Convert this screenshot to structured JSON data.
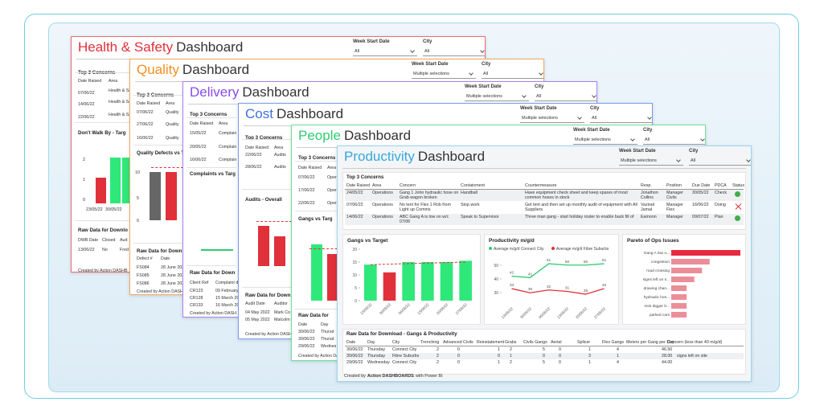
{
  "dashboards": [
    {
      "title_word": "Health & Safety",
      "title_rest": "Dashboard",
      "color": "#e0303a",
      "border": "#ec6b72",
      "filters": [
        {
          "label": "Week Start Date",
          "value": "All"
        },
        {
          "label": "City",
          "value": "All"
        }
      ],
      "texts": [
        "Top 3 Concerns",
        "Date Raised",
        "Area",
        "07/06/22",
        "Health & Safety",
        "14/06/22",
        "Health & Safety",
        "22/06/22",
        "Health & Safety",
        "Don't Walk By - Targ",
        "2",
        "1",
        "0",
        "23/05/22",
        "30/05/22",
        "Raw Data for Downlo",
        "DWB Date",
        "Closed",
        "Aud",
        "13/06/22",
        "No",
        "Fred",
        "Created by Action DASHB"
      ]
    },
    {
      "title_word": "Quality",
      "title_rest": "Dashboard",
      "color": "#f0901e",
      "border": "#f5a85a",
      "filters": [
        {
          "label": "Week Start Date",
          "value": "Multiple selections"
        },
        {
          "label": "City",
          "value": "All"
        }
      ],
      "texts": [
        "Top 3 Concerns",
        "Date Raised",
        "Area",
        "07/06/22",
        "Quality",
        "27/06/22",
        "Quality",
        "16/06/22",
        "Quality",
        "Quality Defects vs T",
        "10",
        "5",
        "0",
        "Raw Data for Down",
        "Defect #",
        "Date",
        "FS084",
        "28 June 2022",
        "FS085",
        "28 June 2022",
        "FS086",
        "28 June 2022",
        "Created by Action DASHB"
      ]
    },
    {
      "title_word": "Delivery",
      "title_rest": "Dashboard",
      "color": "#8a4bef",
      "border": "#a882f2",
      "filters": [
        {
          "label": "Week Start Date",
          "value": "Multiple selections"
        },
        {
          "label": "City",
          "value": "All"
        }
      ],
      "texts": [
        "Top 3 Concerns",
        "Date Raised",
        "Area",
        "15/05/22",
        "Complain",
        "20/05/22",
        "Complain",
        "16/06/22",
        "Complain",
        "Complaints vs Targ",
        "Raw Data for Down",
        "Client Ref",
        "Complaint d",
        "CR123",
        "09 February",
        "CR128",
        "15 March 20",
        "CR133",
        "16 March 20",
        "Created by Action DASH"
      ]
    },
    {
      "title_word": "Cost",
      "title_rest": "Dashboard",
      "color": "#3f6fe0",
      "border": "#7e9bf0",
      "filters": [
        {
          "label": "Week Start Date",
          "value": "Multiple selections"
        },
        {
          "label": "City",
          "value": "All"
        }
      ],
      "texts": [
        "Top 3 Concerns",
        "Date Raised",
        "Area",
        "22/06/22",
        "Audits",
        "28/06/22",
        "Audits",
        "Audits - Overall",
        "Raw Data for Down",
        "Audit Date",
        "Auditor",
        "04 May 2022",
        "Mark Co",
        "05 May 2022",
        "Malcolm",
        "Created by Action DASHB"
      ]
    },
    {
      "title_word": "People",
      "title_rest": "Dashboard",
      "color": "#2ecc71",
      "border": "#6fe09d",
      "filters": [
        {
          "label": "Week Start Date",
          "value": "Multiple selections"
        },
        {
          "label": "City",
          "value": "All"
        }
      ],
      "texts": [
        "Top 3 Concerns",
        "Date Raised",
        "Area",
        "07/06/22",
        "Oper",
        "17/06/22",
        "Oper",
        "22/06/22",
        "Oper",
        "Gangs vs Targ",
        "Raw Data for",
        "Date",
        "Day",
        "30/06/22",
        "Thursd",
        "30/06/22",
        "Thursd",
        "29/06/22",
        "Wednes",
        "Created by Action DAS"
      ]
    },
    {
      "title_word": "Productivity",
      "title_rest": "Dashboard",
      "color": "#35a8dd",
      "border": "#9ad6f0",
      "filters": [
        {
          "label": "Week Start Date",
          "value": "Multiple selections"
        },
        {
          "label": "City",
          "value": "All"
        }
      ],
      "concerns": {
        "title": "Top 3 Concerns",
        "columns": [
          "Date Raised",
          "Area",
          "Concern",
          "Containment",
          "Countermeasure",
          "Resp.",
          "Position",
          "Due Date",
          "PDCA",
          "Status"
        ],
        "rows": [
          [
            "24/05/22",
            "Operations",
            "Gang 1 John hydraulic hose on Grab wagon broken",
            "Handball",
            "Have equipment check sheet and keep spares of most common hoses in stock",
            "Jonathon Collins",
            "Manager Civils",
            "30/05/22",
            "Check"
          ],
          [
            "07/06/22",
            "Operations",
            "No tent for Flex 1 Rob from Light up Comms",
            "Stop work",
            "Get tent and then set up monthly audit of equipment with All Suppliers",
            "Vazirali Jamal",
            "Manager Flex",
            "16/06/22",
            "Doing"
          ],
          [
            "14/06/22",
            "Operations",
            "ABC Gang A is low on w/c 07/06",
            "Speak to Supervisor",
            "Three man gang - start holiday roster to enable back fill of",
            "Eamonn",
            "Manager",
            "09/07/22",
            "Plan"
          ]
        ]
      },
      "gangs": {
        "title": "Gangs vs Target",
        "categories": [
          "23/05/22",
          "30/05/22",
          "06/06/22",
          "13/06/22",
          "20/06/22",
          "27/06/22"
        ],
        "values": [
          14,
          11,
          15,
          15,
          15,
          15.5
        ],
        "colors": [
          "#2ee87a",
          "#e0303a",
          "#2ee87a",
          "#2ee87a",
          "#2ee87a",
          "#2ee87a"
        ],
        "target": [
          14,
          14.2,
          14.4,
          14.6,
          14.8,
          15
        ],
        "target_color": "#e0303a",
        "ylim": [
          0,
          20
        ],
        "yticks": [
          0,
          5,
          10,
          15,
          20
        ]
      },
      "productivity_chart": {
        "title": "Productivity m/g/d",
        "categories": [
          "23/05/22",
          "30/05/22",
          "06/06/22",
          "13/06/22",
          "20/06/22",
          "27/06/22"
        ],
        "series": [
          {
            "name": "Average m/g/d Connect City",
            "color": "#2ecc71",
            "values": [
              42,
              41,
              51,
              50,
              50,
              51
            ]
          },
          {
            "name": "Average m/g/d Fibre Suburbs",
            "color": "#e0303a",
            "values": [
              33,
              30,
              32,
              31,
              29,
              33
            ]
          }
        ],
        "ylim": [
          22,
          58
        ],
        "yticks": [
          30,
          40,
          50
        ]
      },
      "pareto": {
        "title": "Pareto of Ops Issues",
        "categories": [
          "Gang A low o...",
          "congestion",
          "road crossing",
          "signs left on s...",
          "drawing chan...",
          "hydraulic hos...",
          "mini digger b...",
          "parked cars"
        ],
        "values": [
          9,
          5,
          4,
          3,
          2,
          2,
          2,
          2
        ],
        "colors": [
          "#e8293f",
          "#ec8e98",
          "#ec8e98",
          "#ec8e98",
          "#ec8e98",
          "#ec8e98",
          "#ec8e98",
          "#ec8e98"
        ]
      },
      "raw": {
        "title": "Raw Data for Download - Gangs & Productivity",
        "columns": [
          "Date",
          "Day",
          "City",
          "Trenching",
          "Advanced Civils",
          "Reinstatement",
          "Grabs",
          "Civils Gangs",
          "Aerial",
          "Splicer",
          "Flex Gangs",
          "Meters per Gang per Day",
          "Concern (less than 40 m/g/d)"
        ],
        "rows": [
          [
            "30/06/22",
            "Thursday",
            "Connect City",
            "2",
            "0",
            "1",
            "2",
            "5",
            "0",
            "1",
            "4",
            "46.50",
            ""
          ],
          [
            "30/06/22",
            "Thursday",
            "Fibre Suburbs",
            "2",
            "0",
            "0",
            "1",
            "0",
            "0",
            "3",
            "1",
            "28.00",
            "signs left on site"
          ],
          [
            "29/06/22",
            "Wednesday",
            "Connect City",
            "2",
            "0",
            "1",
            "2",
            "5",
            "0",
            "1",
            "4",
            "44.00",
            ""
          ]
        ]
      },
      "footer": {
        "prefix": "Created by",
        "brand": "Action DASHBOARDS",
        "suffix": "with Power BI"
      }
    }
  ]
}
